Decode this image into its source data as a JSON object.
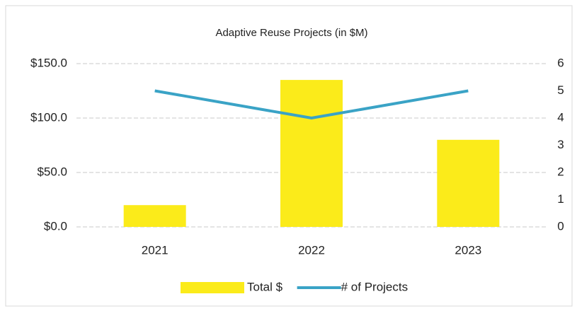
{
  "chart_data": {
    "type": "bar",
    "title": "Adaptive Reuse Projects (in $M)",
    "categories": [
      "2021",
      "2022",
      "2023"
    ],
    "series": [
      {
        "name": "Total $",
        "type": "bar",
        "color": "#fbeb1a",
        "values": [
          20,
          135,
          80
        ]
      },
      {
        "name": "# of Projects",
        "type": "line",
        "color": "#3aa3c6",
        "axis": "y2",
        "values": [
          5,
          4,
          5
        ]
      }
    ],
    "ylim": [
      0,
      150
    ],
    "yticks": [
      {
        "value": 0,
        "label": "$0.0"
      },
      {
        "value": 50,
        "label": "$50.0"
      },
      {
        "value": 100,
        "label": "$100.0"
      },
      {
        "value": 150,
        "label": "$150.0"
      }
    ],
    "y2lim": [
      0,
      6
    ],
    "y2ticks": [
      0,
      1,
      2,
      3,
      4,
      5,
      6
    ],
    "grid": true,
    "legend": "bottom"
  }
}
